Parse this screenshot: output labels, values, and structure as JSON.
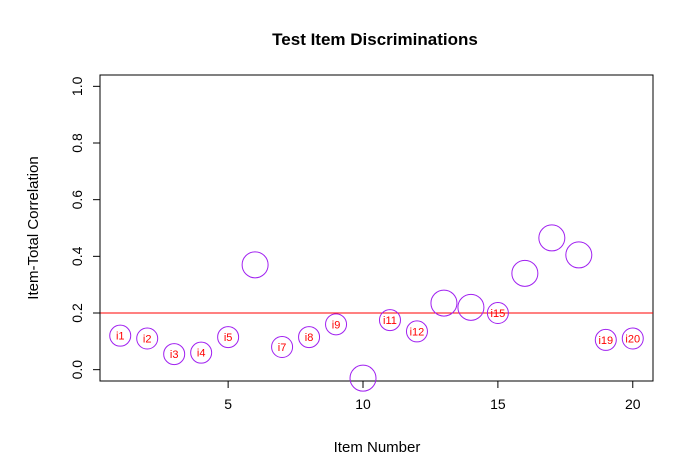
{
  "chart_data": {
    "type": "scatter",
    "title": "Test Item Discriminations",
    "xlabel": "Item Number",
    "ylabel": "Item-Total Correlation",
    "xlim": [
      0.25,
      20.75
    ],
    "ylim": [
      -0.04,
      1.04
    ],
    "xticks": [
      5,
      10,
      15,
      20
    ],
    "yticks": [
      0.0,
      0.2,
      0.4,
      0.6,
      0.8,
      1.0
    ],
    "xtick_labels": [
      "5",
      "10",
      "15",
      "20"
    ],
    "ytick_labels": [
      "0.0",
      "0.2",
      "0.4",
      "0.6",
      "0.8",
      "1.0"
    ],
    "grid": false,
    "reference_line": {
      "y": 0.2,
      "color": "#ff0000"
    },
    "marker": {
      "shape": "open-circle",
      "color": "#a020f0"
    },
    "label_color": "#ff0000",
    "points": [
      {
        "x": 1,
        "y": 0.12,
        "label": "i1"
      },
      {
        "x": 2,
        "y": 0.11,
        "label": "i2"
      },
      {
        "x": 3,
        "y": 0.055,
        "label": "i3"
      },
      {
        "x": 4,
        "y": 0.06,
        "label": "i4"
      },
      {
        "x": 5,
        "y": 0.115,
        "label": "i5"
      },
      {
        "x": 6,
        "y": 0.37,
        "label": ""
      },
      {
        "x": 7,
        "y": 0.08,
        "label": "i7"
      },
      {
        "x": 8,
        "y": 0.115,
        "label": "i8"
      },
      {
        "x": 9,
        "y": 0.16,
        "label": "i9"
      },
      {
        "x": 10,
        "y": -0.03,
        "label": ""
      },
      {
        "x": 11,
        "y": 0.175,
        "label": "i11"
      },
      {
        "x": 12,
        "y": 0.135,
        "label": "i12"
      },
      {
        "x": 13,
        "y": 0.235,
        "label": ""
      },
      {
        "x": 14,
        "y": 0.22,
        "label": ""
      },
      {
        "x": 15,
        "y": 0.2,
        "label": "i15"
      },
      {
        "x": 16,
        "y": 0.34,
        "label": ""
      },
      {
        "x": 17,
        "y": 0.465,
        "label": ""
      },
      {
        "x": 18,
        "y": 0.405,
        "label": ""
      },
      {
        "x": 19,
        "y": 0.105,
        "label": "i19"
      },
      {
        "x": 20,
        "y": 0.11,
        "label": "i20"
      }
    ]
  }
}
